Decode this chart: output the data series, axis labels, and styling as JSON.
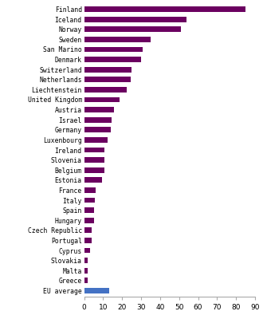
{
  "countries": [
    "Finland",
    "Iceland",
    "Norway",
    "Sweden",
    "San Marino",
    "Denmark",
    "Switzerland",
    "Netherlands",
    "Liechtenstein",
    "United Kingdom",
    "Austria",
    "Israel",
    "Germany",
    "Luxenbourg",
    "Ireland",
    "Slovenia",
    "Belgium",
    "Estonia",
    "France",
    "Italy",
    "Spain",
    "Hungary",
    "Czech Republic",
    "Portugal",
    "Cyprus",
    "Slovakia",
    "Malta",
    "Greece",
    "EU average"
  ],
  "values": [
    85.0,
    54.0,
    51.0,
    35.0,
    31.0,
    30.0,
    25.0,
    24.5,
    22.5,
    18.5,
    15.5,
    14.5,
    14.0,
    12.5,
    10.5,
    10.5,
    10.5,
    9.5,
    6.0,
    5.5,
    5.0,
    5.0,
    4.0,
    4.0,
    3.0,
    2.0,
    2.0,
    2.0,
    13.0
  ],
  "bar_colors": [
    "#6b0060",
    "#6b0060",
    "#6b0060",
    "#6b0060",
    "#6b0060",
    "#6b0060",
    "#6b0060",
    "#6b0060",
    "#6b0060",
    "#6b0060",
    "#6b0060",
    "#6b0060",
    "#6b0060",
    "#6b0060",
    "#6b0060",
    "#6b0060",
    "#6b0060",
    "#6b0060",
    "#6b0060",
    "#6b0060",
    "#6b0060",
    "#6b0060",
    "#6b0060",
    "#6b0060",
    "#6b0060",
    "#6b0060",
    "#6b0060",
    "#6b0060",
    "#4472c4"
  ],
  "xlim": [
    0,
    90
  ],
  "xticks": [
    0,
    10,
    20,
    30,
    40,
    50,
    60,
    70,
    80,
    90
  ],
  "background_color": "#ffffff",
  "bar_height": 0.55,
  "label_fontsize": 5.8,
  "tick_fontsize": 6.5
}
